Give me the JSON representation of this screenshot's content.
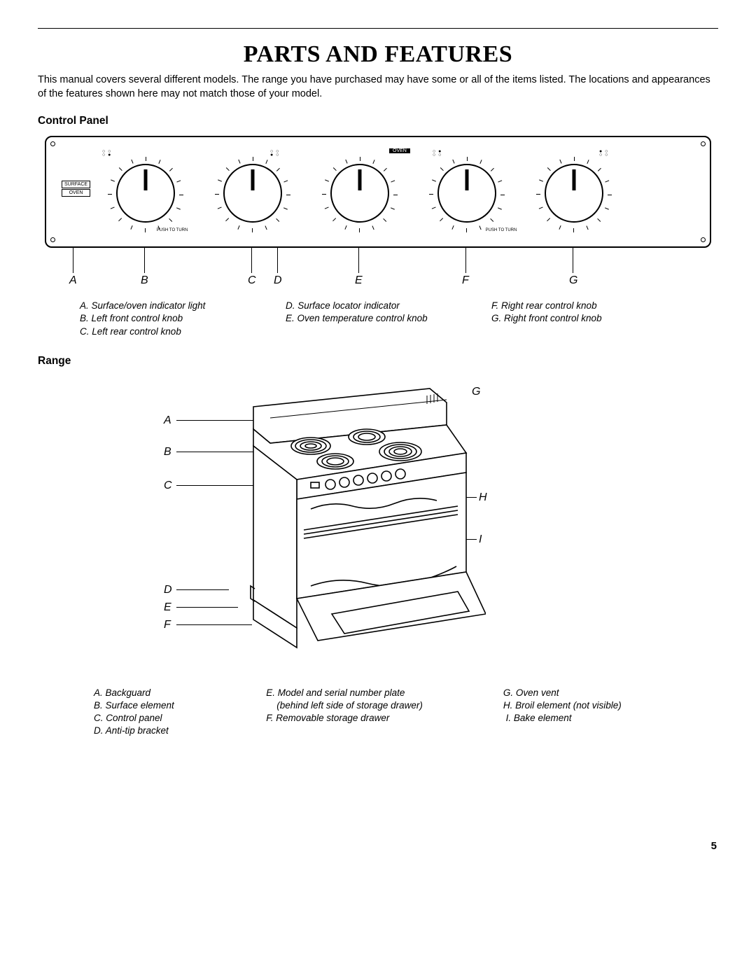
{
  "title": "PARTS AND FEATURES",
  "intro": "This manual covers several different models. The range you have purchased may have some or all of the items listed. The locations and appearances of the features shown here may not match those of your model.",
  "page_number": "5",
  "control_panel": {
    "heading": "Control Panel",
    "surface_label": "SURFACE",
    "oven_label": "OVEN",
    "oven_top_label": "OVEN",
    "push_to_turn": "PUSH TO TURN",
    "letters": [
      "A",
      "B",
      "C",
      "D",
      "E",
      "F",
      "G"
    ],
    "legend": {
      "col1": [
        "A. Surface/oven indicator light",
        "B. Left front control knob",
        "C. Left rear control knob"
      ],
      "col2": [
        "D. Surface locator indicator",
        "E. Oven temperature control knob"
      ],
      "col3": [
        "F. Right rear control knob",
        "G. Right front control knob"
      ]
    }
  },
  "range": {
    "heading": "Range",
    "letters_left": [
      "A",
      "B",
      "C",
      "D",
      "E",
      "F"
    ],
    "letters_right": [
      "G",
      "H",
      "I"
    ],
    "legend": {
      "col1": [
        "A. Backguard",
        "B. Surface element",
        "C. Control panel",
        "D. Anti-tip bracket"
      ],
      "col2": [
        "E. Model and serial number plate",
        "    (behind left side of storage drawer)",
        "F. Removable storage drawer"
      ],
      "col3": [
        "G. Oven vent",
        "H. Broil element (not visible)",
        " I. Bake element"
      ]
    }
  }
}
